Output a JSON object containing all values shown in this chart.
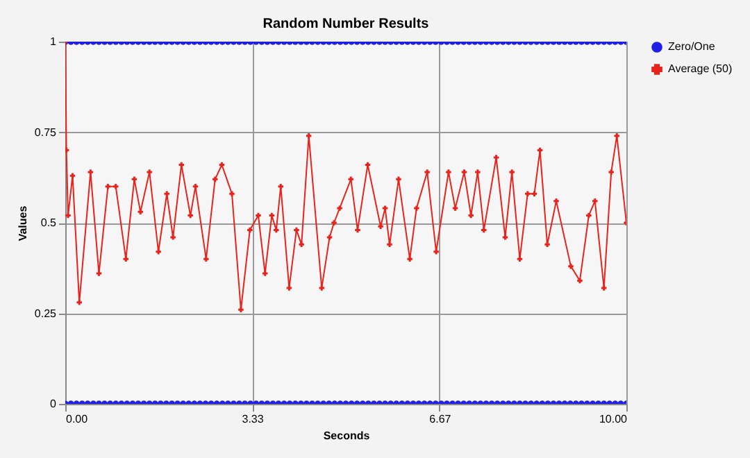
{
  "chart_data": {
    "type": "scatter",
    "title": "Random Number Results",
    "xlabel": "Seconds",
    "ylabel": "Values",
    "xlim": [
      0,
      10
    ],
    "ylim": [
      0,
      1
    ],
    "xticks": [
      {
        "value": 0,
        "label": "0.00"
      },
      {
        "value": 3.33,
        "label": "3.33"
      },
      {
        "value": 6.67,
        "label": "6.67"
      },
      {
        "value": 10,
        "label": "10.00"
      }
    ],
    "yticks": [
      0,
      0.25,
      0.5,
      0.75,
      1
    ],
    "grid": true,
    "legend": "right",
    "series": [
      {
        "name": "Zero/One",
        "marker": "circle",
        "color": "#1f1fe6",
        "x": [
          0,
          0.1,
          0.2,
          0.3,
          0.4,
          0.5,
          0.6,
          0.7,
          0.8,
          0.9,
          1,
          1.1,
          1.2,
          1.3,
          1.4,
          1.5,
          1.6,
          1.7,
          1.8,
          1.9,
          2,
          2.1,
          2.2,
          2.3,
          2.4,
          2.5,
          2.6,
          2.7,
          2.8,
          2.9,
          3,
          3.1,
          3.2,
          3.3,
          3.4,
          3.5,
          3.6,
          3.7,
          3.8,
          3.9,
          4,
          4.1,
          4.2,
          4.3,
          4.4,
          4.5,
          4.6,
          4.7,
          4.8,
          4.9,
          5,
          5.1,
          5.2,
          5.3,
          5.4,
          5.5,
          5.6,
          5.7,
          5.8,
          5.9,
          6,
          6.1,
          6.2,
          6.3,
          6.4,
          6.5,
          6.6,
          6.7,
          6.8,
          6.9,
          7,
          7.1,
          7.2,
          7.3,
          7.4,
          7.5,
          7.6,
          7.7,
          7.8,
          7.9,
          8,
          8.1,
          8.2,
          8.3,
          8.4,
          8.5,
          8.6,
          8.7,
          8.8,
          8.9,
          9,
          9.1,
          9.2,
          9.3,
          9.4,
          9.5,
          9.6,
          9.7,
          9.8,
          9.9,
          10,
          0,
          0.1,
          0.2,
          0.3,
          0.4,
          0.5,
          0.6,
          0.7,
          0.8,
          0.9,
          1,
          1.1,
          1.2,
          1.3,
          1.4,
          1.5,
          1.6,
          1.7,
          1.8,
          1.9,
          2,
          2.1,
          2.2,
          2.3,
          2.4,
          2.5,
          2.6,
          2.7,
          2.8,
          2.9,
          3,
          3.1,
          3.2,
          3.3,
          3.4,
          3.5,
          3.6,
          3.7,
          3.8,
          3.9,
          4,
          4.1,
          4.2,
          4.3,
          4.4,
          4.5,
          4.6,
          4.7,
          4.8,
          4.9,
          5,
          5.1,
          5.2,
          5.3,
          5.4,
          5.5,
          5.6,
          5.7,
          5.8,
          5.9,
          6,
          6.1,
          6.2,
          6.3,
          6.4,
          6.5,
          6.6,
          6.7,
          6.8,
          6.9,
          7,
          7.1,
          7.2,
          7.3,
          7.4,
          7.5,
          7.6,
          7.7,
          7.8,
          7.9,
          8,
          8.1,
          8.2,
          8.3,
          8.4,
          8.5,
          8.6,
          8.7,
          8.8,
          8.9,
          9,
          9.1,
          9.2,
          9.3,
          9.4,
          9.5,
          9.6,
          9.7,
          9.8,
          9.9,
          10
        ],
        "values": [
          0,
          0,
          0,
          0,
          0,
          0,
          0,
          0,
          0,
          0,
          0,
          0,
          0,
          0,
          0,
          0,
          0,
          0,
          0,
          0,
          0,
          0,
          0,
          0,
          0,
          0,
          0,
          0,
          0,
          0,
          0,
          0,
          0,
          0,
          0,
          0,
          0,
          0,
          0,
          0,
          0,
          0,
          0,
          0,
          0,
          0,
          0,
          0,
          0,
          0,
          0,
          0,
          0,
          0,
          0,
          0,
          0,
          0,
          0,
          0,
          0,
          0,
          0,
          0,
          0,
          0,
          0,
          0,
          0,
          0,
          0,
          0,
          0,
          0,
          0,
          0,
          0,
          0,
          0,
          0,
          0,
          0,
          0,
          0,
          0,
          0,
          0,
          0,
          0,
          0,
          0,
          0,
          0,
          0,
          0,
          0,
          0,
          0,
          0,
          0,
          0,
          1,
          1,
          1,
          1,
          1,
          1,
          1,
          1,
          1,
          1,
          1,
          1,
          1,
          1,
          1,
          1,
          1,
          1,
          1,
          1,
          1,
          1,
          1,
          1,
          1,
          1,
          1,
          1,
          1,
          1,
          1,
          1,
          1,
          1,
          1,
          1,
          1,
          1,
          1,
          1,
          1,
          1,
          1,
          1,
          1,
          1,
          1,
          1,
          1,
          1,
          1,
          1,
          1,
          1,
          1,
          1,
          1,
          1,
          1,
          1,
          1,
          1,
          1,
          1,
          1,
          1,
          1,
          1,
          1,
          1,
          1,
          1,
          1,
          1,
          1,
          1,
          1,
          1,
          1,
          1,
          1,
          1,
          1,
          1,
          1,
          1,
          1,
          1,
          1,
          1,
          1,
          1,
          1,
          1,
          1,
          1,
          1,
          1,
          1,
          1,
          1
        ]
      },
      {
        "name": "Average (50)",
        "type": "line",
        "marker": "cross",
        "line_style": "solid",
        "color": "#e8231c",
        "x": [
          0,
          0.02,
          0.05,
          0.13,
          0.25,
          0.45,
          0.6,
          0.76,
          0.9,
          1.08,
          1.23,
          1.34,
          1.5,
          1.66,
          1.81,
          1.92,
          2.07,
          2.23,
          2.32,
          2.51,
          2.67,
          2.79,
          2.97,
          3.13,
          3.29,
          3.44,
          3.56,
          3.68,
          3.76,
          3.84,
          3.99,
          4.12,
          4.21,
          4.34,
          4.57,
          4.71,
          4.79,
          4.89,
          5.09,
          5.21,
          5.39,
          5.62,
          5.7,
          5.78,
          5.94,
          6.14,
          6.26,
          6.45,
          6.61,
          6.83,
          6.95,
          7.11,
          7.23,
          7.35,
          7.46,
          7.68,
          7.84,
          7.96,
          8.1,
          8.24,
          8.36,
          8.46,
          8.59,
          8.75,
          9.01,
          9.17,
          9.33,
          9.44,
          9.6,
          9.73,
          9.83,
          10
        ],
        "values": [
          1,
          0.7,
          0.52,
          0.63,
          0.28,
          0.64,
          0.36,
          0.6,
          0.6,
          0.4,
          0.62,
          0.53,
          0.64,
          0.42,
          0.58,
          0.46,
          0.66,
          0.52,
          0.6,
          0.4,
          0.62,
          0.66,
          0.58,
          0.26,
          0.48,
          0.52,
          0.36,
          0.52,
          0.48,
          0.6,
          0.32,
          0.48,
          0.44,
          0.74,
          0.32,
          0.46,
          0.5,
          0.54,
          0.62,
          0.48,
          0.66,
          0.49,
          0.54,
          0.44,
          0.62,
          0.4,
          0.54,
          0.64,
          0.42,
          0.64,
          0.54,
          0.64,
          0.52,
          0.64,
          0.48,
          0.68,
          0.46,
          0.64,
          0.4,
          0.58,
          0.58,
          0.7,
          0.44,
          0.56,
          0.38,
          0.34,
          0.52,
          0.56,
          0.32,
          0.64,
          0.74,
          0.5
        ]
      }
    ]
  }
}
